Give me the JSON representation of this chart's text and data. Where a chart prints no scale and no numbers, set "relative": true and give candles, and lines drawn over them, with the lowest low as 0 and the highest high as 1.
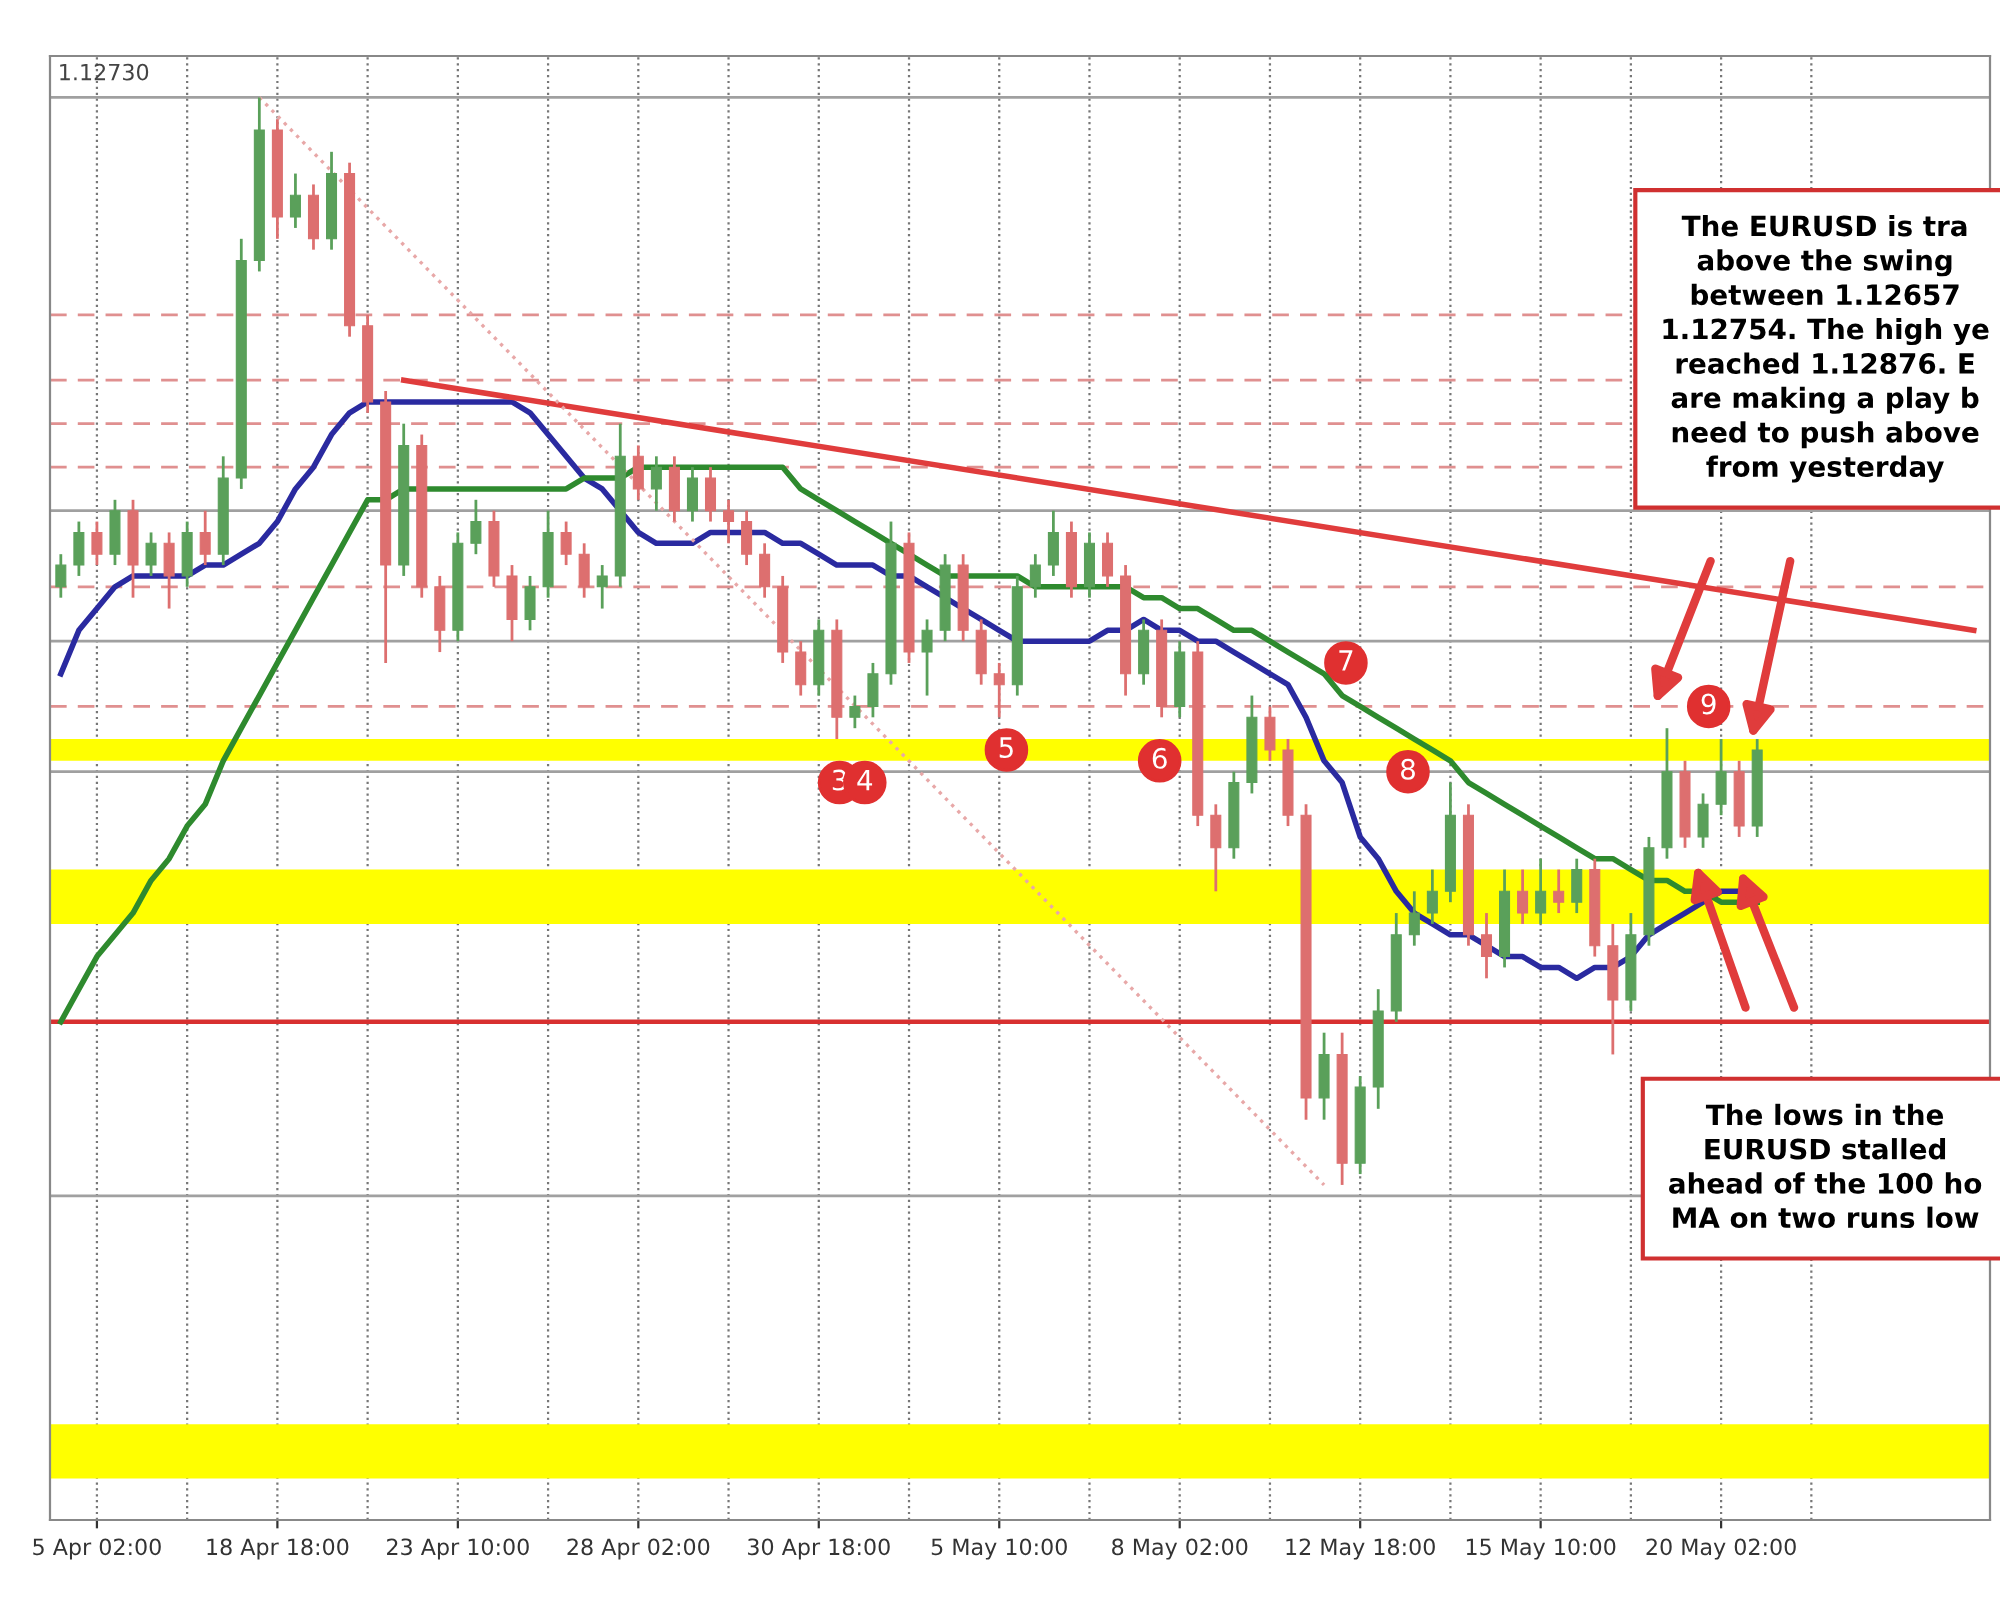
{
  "chart_data": {
    "type": "candlestick",
    "relative": true,
    "categories": [
      null,
      null,
      "5 Apr 02:00",
      null,
      null,
      null,
      null,
      null,
      null,
      null,
      null,
      null,
      "18 Apr 18:00",
      null,
      null,
      null,
      null,
      null,
      null,
      null,
      null,
      null,
      "23 Apr 10:00",
      null,
      null,
      null,
      null,
      null,
      null,
      null,
      null,
      null,
      "28 Apr 02:00",
      null,
      null,
      null,
      null,
      null,
      null,
      null,
      null,
      null,
      "30 Apr 18:00",
      null,
      null,
      null,
      null,
      null,
      null,
      null,
      null,
      null,
      "5 May 10:00",
      null,
      null,
      null,
      null,
      null,
      null,
      null,
      null,
      null,
      "8 May 02:00",
      null,
      null,
      null,
      null,
      null,
      null,
      null,
      null,
      null,
      "12 May 18:00",
      null,
      null,
      null,
      null,
      null,
      null,
      null,
      null,
      null,
      "15 May 10:00",
      null,
      null,
      null,
      null,
      null,
      null,
      null,
      null,
      null,
      "20 May 02:00",
      null,
      null,
      null,
      null,
      null,
      null,
      null,
      null,
      null,
      null,
      null,
      null,
      null,
      null
    ],
    "ohlc": [
      [
        0.55,
        0.58,
        0.54,
        0.57
      ],
      [
        0.57,
        0.61,
        0.56,
        0.6
      ],
      [
        0.6,
        0.61,
        0.57,
        0.58
      ],
      [
        0.58,
        0.63,
        0.57,
        0.62
      ],
      [
        0.62,
        0.63,
        0.54,
        0.57
      ],
      [
        0.57,
        0.6,
        0.56,
        0.59
      ],
      [
        0.59,
        0.6,
        0.53,
        0.56
      ],
      [
        0.56,
        0.61,
        0.55,
        0.6
      ],
      [
        0.6,
        0.62,
        0.57,
        0.58
      ],
      [
        0.58,
        0.67,
        0.57,
        0.65
      ],
      [
        0.65,
        0.87,
        0.64,
        0.85
      ],
      [
        0.85,
        1.0,
        0.84,
        0.97
      ],
      [
        0.97,
        0.98,
        0.87,
        0.89
      ],
      [
        0.89,
        0.93,
        0.88,
        0.91
      ],
      [
        0.91,
        0.92,
        0.86,
        0.87
      ],
      [
        0.87,
        0.95,
        0.86,
        0.93
      ],
      [
        0.93,
        0.94,
        0.78,
        0.79
      ],
      [
        0.79,
        0.8,
        0.71,
        0.72
      ],
      [
        0.72,
        0.73,
        0.48,
        0.57
      ],
      [
        0.57,
        0.7,
        0.56,
        0.68
      ],
      [
        0.68,
        0.69,
        0.54,
        0.55
      ],
      [
        0.55,
        0.56,
        0.49,
        0.51
      ],
      [
        0.51,
        0.6,
        0.5,
        0.59
      ],
      [
        0.59,
        0.63,
        0.58,
        0.61
      ],
      [
        0.61,
        0.62,
        0.55,
        0.56
      ],
      [
        0.56,
        0.57,
        0.5,
        0.52
      ],
      [
        0.52,
        0.56,
        0.51,
        0.55
      ],
      [
        0.55,
        0.62,
        0.54,
        0.6
      ],
      [
        0.6,
        0.61,
        0.57,
        0.58
      ],
      [
        0.58,
        0.59,
        0.54,
        0.55
      ],
      [
        0.55,
        0.57,
        0.53,
        0.56
      ],
      [
        0.56,
        0.7,
        0.55,
        0.67
      ],
      [
        0.67,
        0.68,
        0.63,
        0.64
      ],
      [
        0.64,
        0.67,
        0.62,
        0.66
      ],
      [
        0.66,
        0.67,
        0.61,
        0.62
      ],
      [
        0.62,
        0.66,
        0.61,
        0.65
      ],
      [
        0.65,
        0.66,
        0.61,
        0.62
      ],
      [
        0.62,
        0.63,
        0.59,
        0.61
      ],
      [
        0.61,
        0.62,
        0.57,
        0.58
      ],
      [
        0.58,
        0.59,
        0.54,
        0.55
      ],
      [
        0.55,
        0.56,
        0.48,
        0.49
      ],
      [
        0.49,
        0.5,
        0.45,
        0.46
      ],
      [
        0.46,
        0.52,
        0.45,
        0.51
      ],
      [
        0.51,
        0.52,
        0.41,
        0.43
      ],
      [
        0.43,
        0.45,
        0.42,
        0.44
      ],
      [
        0.44,
        0.48,
        0.43,
        0.47
      ],
      [
        0.47,
        0.61,
        0.46,
        0.59
      ],
      [
        0.59,
        0.6,
        0.48,
        0.49
      ],
      [
        0.49,
        0.52,
        0.45,
        0.51
      ],
      [
        0.51,
        0.58,
        0.5,
        0.57
      ],
      [
        0.57,
        0.58,
        0.5,
        0.51
      ],
      [
        0.51,
        0.52,
        0.46,
        0.47
      ],
      [
        0.47,
        0.48,
        0.43,
        0.46
      ],
      [
        0.46,
        0.56,
        0.45,
        0.55
      ],
      [
        0.55,
        0.58,
        0.54,
        0.57
      ],
      [
        0.57,
        0.62,
        0.56,
        0.6
      ],
      [
        0.6,
        0.61,
        0.54,
        0.55
      ],
      [
        0.55,
        0.6,
        0.54,
        0.59
      ],
      [
        0.59,
        0.6,
        0.55,
        0.56
      ],
      [
        0.56,
        0.57,
        0.45,
        0.47
      ],
      [
        0.47,
        0.52,
        0.46,
        0.51
      ],
      [
        0.51,
        0.52,
        0.43,
        0.44
      ],
      [
        0.44,
        0.5,
        0.43,
        0.49
      ],
      [
        0.49,
        0.5,
        0.33,
        0.34
      ],
      [
        0.34,
        0.35,
        0.27,
        0.31
      ],
      [
        0.31,
        0.38,
        0.3,
        0.37
      ],
      [
        0.37,
        0.45,
        0.36,
        0.43
      ],
      [
        0.43,
        0.44,
        0.39,
        0.4
      ],
      [
        0.4,
        0.41,
        0.33,
        0.34
      ],
      [
        0.34,
        0.35,
        0.06,
        0.08
      ],
      [
        0.08,
        0.14,
        0.06,
        0.12
      ],
      [
        0.12,
        0.14,
        0.0,
        0.02
      ],
      [
        0.02,
        0.1,
        0.01,
        0.09
      ],
      [
        0.09,
        0.18,
        0.07,
        0.16
      ],
      [
        0.16,
        0.25,
        0.15,
        0.23
      ],
      [
        0.23,
        0.27,
        0.22,
        0.25
      ],
      [
        0.25,
        0.29,
        0.24,
        0.27
      ],
      [
        0.27,
        0.37,
        0.26,
        0.34
      ],
      [
        0.34,
        0.35,
        0.22,
        0.23
      ],
      [
        0.23,
        0.25,
        0.19,
        0.21
      ],
      [
        0.21,
        0.29,
        0.2,
        0.27
      ],
      [
        0.27,
        0.29,
        0.24,
        0.25
      ],
      [
        0.25,
        0.3,
        0.24,
        0.27
      ],
      [
        0.27,
        0.29,
        0.25,
        0.26
      ],
      [
        0.26,
        0.3,
        0.25,
        0.29
      ],
      [
        0.29,
        0.3,
        0.21,
        0.22
      ],
      [
        0.22,
        0.24,
        0.12,
        0.17
      ],
      [
        0.17,
        0.25,
        0.16,
        0.23
      ],
      [
        0.23,
        0.32,
        0.22,
        0.31
      ],
      [
        0.31,
        0.42,
        0.3,
        0.38
      ],
      [
        0.38,
        0.39,
        0.31,
        0.32
      ],
      [
        0.32,
        0.36,
        0.31,
        0.35
      ],
      [
        0.35,
        0.41,
        0.34,
        0.38
      ],
      [
        0.38,
        0.39,
        0.32,
        0.33
      ],
      [
        0.33,
        0.41,
        0.32,
        0.4
      ],
      null,
      null,
      null,
      null,
      null,
      null,
      null,
      null,
      null,
      null,
      null,
      null
    ],
    "series": [
      {
        "type": "line",
        "color": "#2a2aa0",
        "values": [
          0.47,
          0.51,
          0.53,
          0.55,
          0.56,
          0.56,
          0.56,
          0.56,
          0.57,
          0.57,
          0.58,
          0.59,
          0.61,
          0.64,
          0.66,
          0.69,
          0.71,
          0.72,
          0.72,
          0.72,
          0.72,
          0.72,
          0.72,
          0.72,
          0.72,
          0.72,
          0.71,
          0.69,
          0.67,
          0.65,
          0.64,
          0.62,
          0.6,
          0.59,
          0.59,
          0.59,
          0.6,
          0.6,
          0.6,
          0.6,
          0.59,
          0.59,
          0.58,
          0.57,
          0.57,
          0.57,
          0.56,
          0.56,
          0.55,
          0.54,
          0.53,
          0.52,
          0.51,
          0.5,
          0.5,
          0.5,
          0.5,
          0.5,
          0.51,
          0.51,
          0.52,
          0.51,
          0.51,
          0.5,
          0.5,
          0.49,
          0.48,
          0.47,
          0.46,
          0.43,
          0.39,
          0.37,
          0.32,
          0.3,
          0.27,
          0.25,
          0.24,
          0.23,
          0.23,
          0.22,
          0.21,
          0.21,
          0.2,
          0.2,
          0.19,
          0.2,
          0.2,
          0.21,
          0.23,
          0.24,
          0.25,
          0.26,
          0.27,
          0.27,
          0.27,
          null,
          null,
          null,
          null,
          null,
          null,
          null,
          null,
          null,
          null,
          null,
          null
        ]
      },
      {
        "type": "line",
        "color": "#2e8a2e",
        "values": [
          0.15,
          0.18,
          0.21,
          0.23,
          0.25,
          0.28,
          0.3,
          0.33,
          0.35,
          0.39,
          0.42,
          0.45,
          0.48,
          0.51,
          0.54,
          0.57,
          0.6,
          0.63,
          0.63,
          0.64,
          0.64,
          0.64,
          0.64,
          0.64,
          0.64,
          0.64,
          0.64,
          0.64,
          0.64,
          0.65,
          0.65,
          0.65,
          0.66,
          0.66,
          0.66,
          0.66,
          0.66,
          0.66,
          0.66,
          0.66,
          0.66,
          0.64,
          0.63,
          0.62,
          0.61,
          0.6,
          0.59,
          0.58,
          0.57,
          0.56,
          0.56,
          0.56,
          0.56,
          0.56,
          0.55,
          0.55,
          0.55,
          0.55,
          0.55,
          0.55,
          0.54,
          0.54,
          0.53,
          0.53,
          0.52,
          0.51,
          0.51,
          0.5,
          0.49,
          0.48,
          0.47,
          0.45,
          0.44,
          0.43,
          0.42,
          0.41,
          0.4,
          0.39,
          0.37,
          0.36,
          0.35,
          0.34,
          0.33,
          0.32,
          0.31,
          0.3,
          0.3,
          0.29,
          0.28,
          0.28,
          0.27,
          0.27,
          0.26,
          0.26,
          0.26,
          null,
          null,
          null,
          null,
          null,
          null,
          null,
          null,
          null,
          null,
          null,
          null
        ]
      },
      {
        "type": "line",
        "color": "#e03c3c",
        "values": [
          null,
          null,
          null,
          null,
          null,
          null,
          null,
          null,
          null,
          null,
          null,
          null,
          null,
          null,
          null,
          null,
          null,
          null,
          null,
          0.74,
          null,
          null,
          null,
          null,
          null,
          null,
          null,
          null,
          null,
          null,
          null,
          null,
          null,
          null,
          null,
          null,
          null,
          null,
          null,
          null,
          null,
          null,
          null,
          null,
          null,
          null,
          null,
          null,
          null,
          null,
          null,
          null,
          null,
          null,
          null,
          null,
          null,
          null,
          null,
          null,
          null,
          null,
          null,
          null,
          null,
          null,
          null,
          null,
          null,
          null,
          null,
          null,
          null,
          null,
          null,
          null,
          null,
          null,
          null,
          null,
          null,
          null,
          null,
          null,
          null,
          null,
          null,
          null,
          null,
          null,
          null,
          null,
          null,
          null,
          null,
          null,
          null,
          null,
          null,
          null,
          null,
          null,
          null,
          null,
          null,
          null,
          0.51
        ]
      },
      {
        "type": "line",
        "color": "#e8a8a8",
        "line_style": "dotted",
        "values": [
          null,
          null,
          null,
          null,
          null,
          null,
          null,
          null,
          null,
          null,
          null,
          1.0,
          null,
          null,
          null,
          null,
          null,
          null,
          null,
          null,
          null,
          null,
          null,
          null,
          null,
          null,
          null,
          null,
          null,
          null,
          null,
          null,
          null,
          null,
          null,
          null,
          null,
          null,
          null,
          null,
          null,
          null,
          null,
          null,
          null,
          null,
          null,
          null,
          null,
          null,
          null,
          null,
          null,
          null,
          null,
          null,
          null,
          null,
          null,
          null,
          null,
          null,
          null,
          null,
          null,
          null,
          null,
          null,
          null,
          null,
          0.0,
          null,
          null,
          null,
          null,
          null,
          null,
          null,
          null,
          null,
          null,
          null,
          null,
          null,
          null,
          null,
          null,
          null,
          null,
          null,
          null,
          null,
          null,
          null,
          null,
          null,
          null,
          null,
          null,
          null,
          null,
          null,
          null,
          null,
          null,
          null,
          null
        ]
      }
    ],
    "grid": "x",
    "ref_lines": [
      {
        "axis": "y",
        "value": 1.0,
        "color": "#a0a0a0",
        "line_style": "solid"
      },
      {
        "axis": "y",
        "value": 0.62,
        "color": "#a0a0a0",
        "line_style": "solid"
      },
      {
        "axis": "y",
        "value": 0.5,
        "color": "#a0a0a0",
        "line_style": "solid"
      },
      {
        "axis": "y",
        "value": 0.38,
        "color": "#a0a0a0",
        "line_style": "solid"
      },
      {
        "axis": "y",
        "value": -0.01,
        "color": "#a0a0a0",
        "line_style": "solid"
      },
      {
        "axis": "y",
        "value": 0.8,
        "color": "#e09090",
        "line_style": "dashed"
      },
      {
        "axis": "y",
        "value": 0.74,
        "color": "#e09090",
        "line_style": "dashed"
      },
      {
        "axis": "y",
        "value": 0.7,
        "color": "#e09090",
        "line_style": "dashed"
      },
      {
        "axis": "y",
        "value": 0.66,
        "color": "#e09090",
        "line_style": "dashed"
      },
      {
        "axis": "y",
        "value": 0.55,
        "color": "#e09090",
        "line_style": "dashed"
      },
      {
        "axis": "y",
        "value": 0.44,
        "color": "#e09090",
        "line_style": "dashed"
      },
      {
        "axis": "y",
        "value": 0.15,
        "color": "#d83030",
        "line_style": "solid"
      }
    ],
    "bands": [
      {
        "axis": "y",
        "from": 0.39,
        "to": 0.41,
        "color": "#ffff00"
      },
      {
        "axis": "y",
        "from": 0.24,
        "to": 0.29,
        "color": "#ffff00"
      },
      {
        "axis": "y",
        "from": -0.27,
        "to": -0.22,
        "color": "#ffff00"
      }
    ],
    "annotations": [
      "1.12730",
      "The EURUSD is tra\nabove the swing\nbetween 1.12657\n1.12754. The high ye\nreached 1.12876. E\nare making a play b\nneed to push above\nfrom yesterday",
      "The lows in the\nEURUSD stalled\nahead of the 100 ho\nMA on two runs low",
      {
        "text": "3",
        "y": 0.37
      },
      {
        "text": "4",
        "y": 0.37
      },
      {
        "text": "5",
        "y": 0.4
      },
      {
        "text": "6",
        "y": 0.39
      },
      {
        "text": "7",
        "y": 0.48
      },
      {
        "text": "8",
        "y": 0.38
      },
      {
        "text": "9",
        "y": 0.44
      }
    ]
  }
}
